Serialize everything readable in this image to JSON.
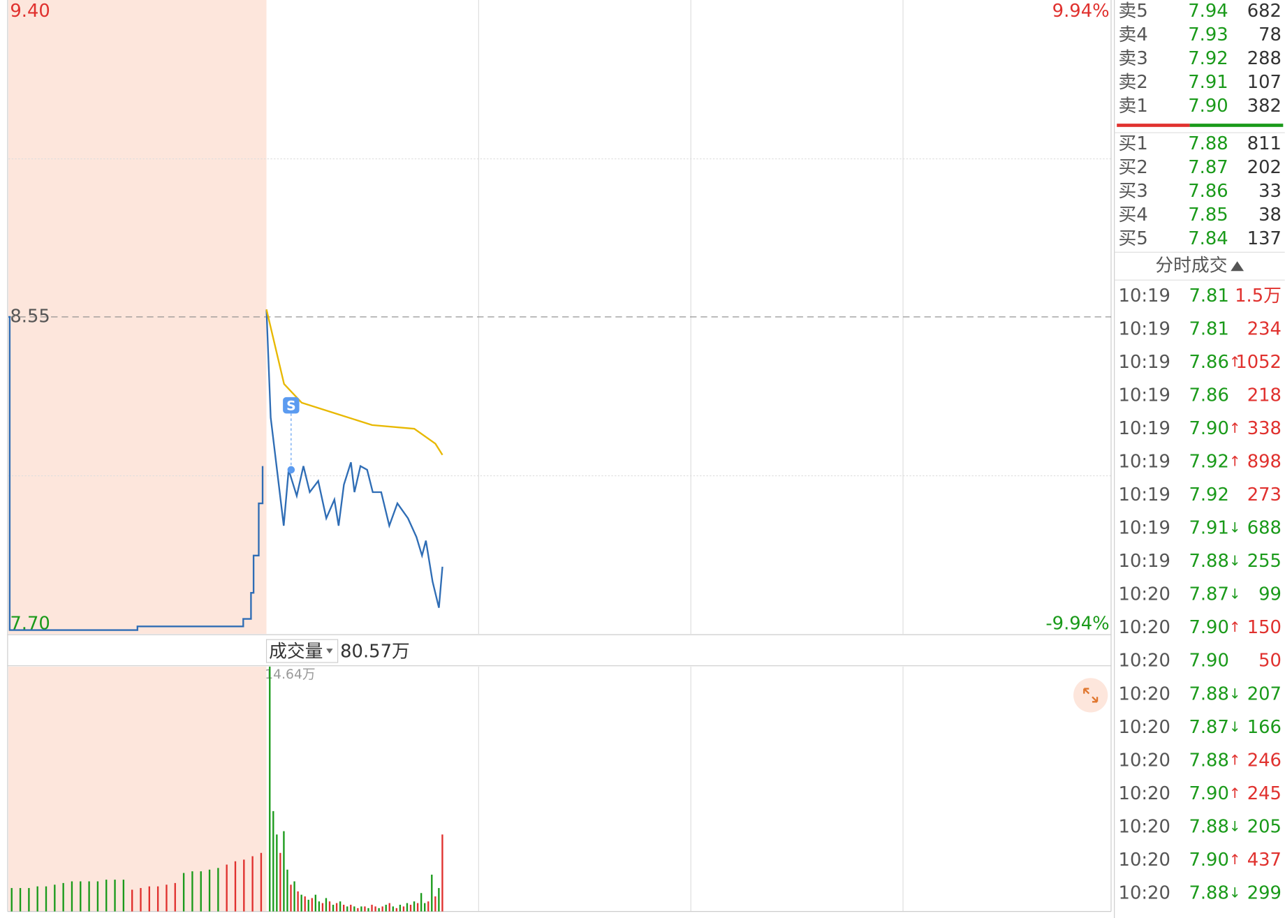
{
  "chart_data": {
    "type": "line",
    "ylim": [
      7.7,
      9.4
    ],
    "yticks": [
      {
        "value": 9.4,
        "label": "9.40"
      },
      8.55,
      {
        "value": 7.7,
        "label": "7.70"
      }
    ],
    "y2lim": [
      -9.94,
      9.94
    ],
    "y2ticks": [
      {
        "value": 9.94,
        "label": "9.94%"
      },
      {
        "value": -9.94,
        "label": "-9.94%"
      }
    ],
    "xlim": [
      0,
      240
    ],
    "auction_xlim": [
      0,
      10
    ],
    "auction": {
      "color": "#2f6db5",
      "x": [
        0,
        0.05,
        4.9,
        5,
        9,
        9.1,
        9.4,
        9.5,
        9.7,
        9.85
      ],
      "values": [
        8.55,
        7.71,
        7.71,
        7.72,
        7.72,
        7.74,
        7.81,
        7.91,
        8.05,
        8.15
      ]
    },
    "series": [
      {
        "color": "#2f6db5",
        "x": [
          0,
          1.2,
          3.5,
          4.9,
          6.3,
          8.6,
          10.5,
          12.3,
          14.7,
          17,
          19.3,
          20.5,
          22,
          24,
          25,
          26.7,
          28.6,
          30.2,
          32.6,
          34.9,
          37.2,
          40.2,
          42.6,
          44.2,
          45.3,
          47.2,
          49,
          50
        ],
        "values": [
          8.57,
          8.28,
          8.1,
          7.99,
          8.14,
          8.07,
          8.15,
          8.08,
          8.11,
          8.01,
          8.06,
          7.99,
          8.1,
          8.16,
          8.08,
          8.15,
          8.14,
          8.08,
          8.08,
          7.99,
          8.05,
          8.01,
          7.96,
          7.91,
          7.95,
          7.84,
          7.77,
          7.88
        ]
      },
      {
        "color": "#e8b800",
        "x": [
          0,
          5,
          10,
          20,
          30,
          42,
          48,
          50
        ],
        "values": [
          8.57,
          8.37,
          8.32,
          8.29,
          8.26,
          8.25,
          8.21,
          8.18
        ]
      }
    ],
    "marker": {
      "label": "S",
      "x": 7,
      "price": 8.14
    },
    "volume": {
      "label": "成交量",
      "current": "80.57万",
      "ylim": [
        0,
        14.64
      ],
      "yticks": [
        {
          "value": 14.64,
          "label": "14.64万"
        }
      ],
      "values": [
        14.64,
        6.0,
        4.6,
        3.5,
        4.8,
        2.5,
        1.6,
        1.8,
        1.2,
        1.0,
        0.9,
        0.7,
        0.8,
        1.0,
        0.6,
        0.5,
        0.8,
        0.6,
        0.4,
        0.5,
        0.6,
        0.4,
        0.3,
        0.4,
        0.3,
        0.2,
        0.3,
        0.3,
        0.2,
        0.4,
        0.3,
        0.2,
        0.3,
        0.4,
        0.5,
        0.3,
        0.2,
        0.4,
        0.3,
        0.5,
        0.4,
        0.6,
        0.5,
        1.1,
        0.5,
        0.6,
        2.2,
        0.9,
        1.4,
        4.6
      ],
      "colors": [
        "#1a9a1a",
        "#1a9a1a",
        "#1a9a1a",
        "#e0312e",
        "#1a9a1a",
        "#1a9a1a",
        "#e0312e",
        "#1a9a1a",
        "#e0312e",
        "#1a9a1a",
        "#e0312e",
        "#1a9a1a",
        "#e0312e",
        "#1a9a1a",
        "#1a9a1a",
        "#e0312e",
        "#1a9a1a",
        "#e0312e",
        "#1a9a1a",
        "#e0312e",
        "#1a9a1a",
        "#e0312e",
        "#1a9a1a",
        "#e0312e",
        "#1a9a1a",
        "#e0312e",
        "#1a9a1a",
        "#e0312e",
        "#1a9a1a",
        "#e0312e",
        "#e0312e",
        "#1a9a1a",
        "#e0312e",
        "#1a9a1a",
        "#e0312e",
        "#1a9a1a",
        "#e0312e",
        "#1a9a1a",
        "#e0312e",
        "#1a9a1a",
        "#e0312e",
        "#1a9a1a",
        "#e0312e",
        "#1a9a1a",
        "#1a9a1a",
        "#e0312e",
        "#1a9a1a",
        "#e0312e",
        "#1a9a1a",
        "#e0312e"
      ],
      "auction_values": [
        1.4,
        1.4,
        1.4,
        1.5,
        1.5,
        1.6,
        1.7,
        1.8,
        1.8,
        1.8,
        1.8,
        1.9,
        1.9,
        1.9,
        1.3,
        1.4,
        1.5,
        1.5,
        1.6,
        1.7,
        2.3,
        2.4,
        2.4,
        2.5,
        2.6,
        2.8,
        3.0,
        3.1,
        3.3,
        3.5
      ],
      "auction_colors": [
        "#1a9a1a",
        "#1a9a1a",
        "#1a9a1a",
        "#1a9a1a",
        "#1a9a1a",
        "#1a9a1a",
        "#1a9a1a",
        "#1a9a1a",
        "#1a9a1a",
        "#1a9a1a",
        "#1a9a1a",
        "#1a9a1a",
        "#1a9a1a",
        "#1a9a1a",
        "#e0312e",
        "#e0312e",
        "#e0312e",
        "#e0312e",
        "#e0312e",
        "#e0312e",
        "#1a9a1a",
        "#1a9a1a",
        "#1a9a1a",
        "#1a9a1a",
        "#1a9a1a",
        "#e0312e",
        "#e0312e",
        "#e0312e",
        "#e0312e",
        "#e0312e"
      ]
    }
  },
  "order_book": {
    "sell": [
      {
        "label": "卖5",
        "price": "7.94",
        "vol": 682
      },
      {
        "label": "卖4",
        "price": "7.93",
        "vol": 78
      },
      {
        "label": "卖3",
        "price": "7.92",
        "vol": 288
      },
      {
        "label": "卖2",
        "price": "7.91",
        "vol": 107
      },
      {
        "label": "卖1",
        "price": "7.90",
        "vol": 382
      }
    ],
    "buy": [
      {
        "label": "买1",
        "price": "7.88",
        "vol": 811
      },
      {
        "label": "买2",
        "price": "7.87",
        "vol": 202
      },
      {
        "label": "买3",
        "price": "7.86",
        "vol": 33
      },
      {
        "label": "买4",
        "price": "7.85",
        "vol": 38
      },
      {
        "label": "买5",
        "price": "7.84",
        "vol": 137
      }
    ]
  },
  "trades": {
    "title": "分时成交",
    "rows": [
      {
        "time": "10:19",
        "price": "7.81",
        "vol": "1.5万",
        "color": "#e0312e"
      },
      {
        "time": "10:19",
        "price": "7.81",
        "vol": 234,
        "color": "#e0312e"
      },
      {
        "time": "10:19",
        "price": "7.86",
        "arrow": "↑",
        "vol": 1052,
        "color": "#e0312e"
      },
      {
        "time": "10:19",
        "price": "7.86",
        "vol": 218,
        "color": "#e0312e"
      },
      {
        "time": "10:19",
        "price": "7.90",
        "arrow": "↑",
        "vol": 338,
        "color": "#e0312e"
      },
      {
        "time": "10:19",
        "price": "7.92",
        "arrow": "↑",
        "vol": 898,
        "color": "#e0312e"
      },
      {
        "time": "10:19",
        "price": "7.92",
        "vol": 273,
        "color": "#e0312e"
      },
      {
        "time": "10:19",
        "price": "7.91",
        "arrow": "↓",
        "vol": 688,
        "color": "#1a9a1a"
      },
      {
        "time": "10:19",
        "price": "7.88",
        "arrow": "↓",
        "vol": 255,
        "color": "#1a9a1a"
      },
      {
        "time": "10:20",
        "price": "7.87",
        "arrow": "↓",
        "vol": 99,
        "color": "#1a9a1a"
      },
      {
        "time": "10:20",
        "price": "7.90",
        "arrow": "↑",
        "vol": 150,
        "color": "#e0312e"
      },
      {
        "time": "10:20",
        "price": "7.90",
        "vol": 50,
        "color": "#e0312e"
      },
      {
        "time": "10:20",
        "price": "7.88",
        "arrow": "↓",
        "vol": 207,
        "color": "#1a9a1a"
      },
      {
        "time": "10:20",
        "price": "7.87",
        "arrow": "↓",
        "vol": 166,
        "color": "#1a9a1a"
      },
      {
        "time": "10:20",
        "price": "7.88",
        "arrow": "↑",
        "vol": 246,
        "color": "#e0312e"
      },
      {
        "time": "10:20",
        "price": "7.90",
        "arrow": "↑",
        "vol": 245,
        "color": "#e0312e"
      },
      {
        "time": "10:20",
        "price": "7.88",
        "arrow": "↓",
        "vol": 205,
        "color": "#1a9a1a"
      },
      {
        "time": "10:20",
        "price": "7.90",
        "arrow": "↑",
        "vol": 437,
        "color": "#e0312e"
      },
      {
        "time": "10:20",
        "price": "7.88",
        "arrow": "↓",
        "vol": 299,
        "color": "#1a9a1a"
      }
    ]
  }
}
